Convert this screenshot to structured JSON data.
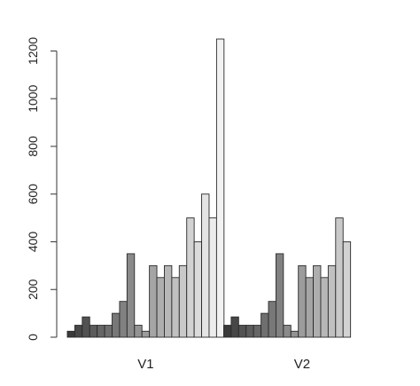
{
  "chart_data": {
    "type": "bar",
    "groups": [
      {
        "name": "V1",
        "values": [
          25,
          50,
          85,
          50,
          50,
          50,
          100,
          150,
          350,
          50,
          25,
          300,
          250,
          300,
          250,
          300,
          500,
          400,
          600,
          500,
          1250
        ]
      },
      {
        "name": "V2",
        "values": [
          50,
          85,
          50,
          50,
          50,
          100,
          150,
          350,
          50,
          25,
          300,
          250,
          300,
          250,
          300,
          500,
          400,
          0,
          0,
          0,
          0
        ]
      }
    ],
    "bar_colors": [
      "#3a3a3a",
      "#474747",
      "#525252",
      "#5c5c5c",
      "#666666",
      "#6f6f6f",
      "#787878",
      "#818181",
      "#8a8a8a",
      "#939393",
      "#9c9c9c",
      "#a5a5a5",
      "#aeaeae",
      "#b7b7b7",
      "#c0c0c0",
      "#c9c9c9",
      "#d2d2d2",
      "#dbdbdb",
      "#e4e4e4",
      "#ececec",
      "#f2f2f2"
    ],
    "yticks": [
      0,
      200,
      400,
      600,
      800,
      1000,
      1200
    ],
    "ylim": [
      0,
      1260
    ],
    "xlabel": "",
    "ylabel": "",
    "title": ""
  }
}
